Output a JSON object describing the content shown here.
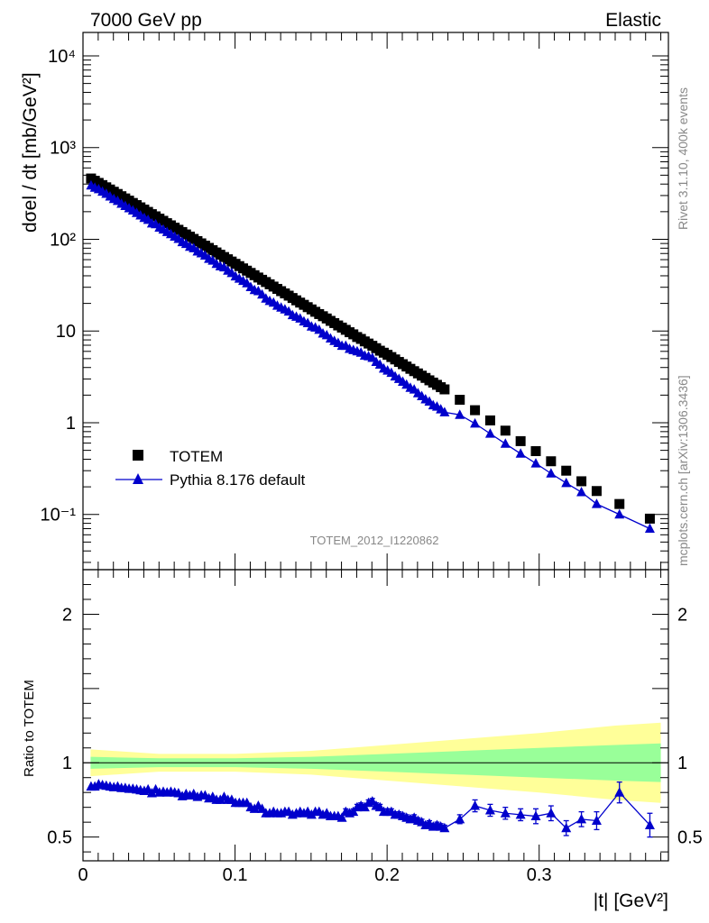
{
  "header": {
    "left": "7000 GeV pp",
    "right": "Elastic"
  },
  "side_labels": {
    "rivet": "Rivet 3.1.10,  400k events",
    "mcplots": "mcplots.cern.ch [arXiv:1306.3436]"
  },
  "colors": {
    "data": "#000000",
    "mc": "#0000cc",
    "band_inner": "#99ff99",
    "band_outer": "#ffff99"
  },
  "chart_data": [
    {
      "type": "scatter",
      "title": "TOTEM_2012_I1220862",
      "xlabel": "|t| [GeV²]",
      "ylabel": "dσel / dt [mb/GeV²]",
      "yscale": "log",
      "xlim": [
        0,
        0.385
      ],
      "ylim": [
        0.025,
        18000
      ],
      "ytick_labels": [
        "10⁻¹",
        "1",
        "10",
        "10²",
        "10³",
        "10⁴"
      ],
      "legend": [
        {
          "name": "TOTEM",
          "marker": "square"
        },
        {
          "name": "Pythia 8.176 default",
          "marker": "triangle"
        }
      ],
      "legend_position": "bottom-left",
      "series": [
        {
          "name": "TOTEM",
          "x": [
            0.0053,
            0.0078,
            0.0103,
            0.0128,
            0.0153,
            0.0178,
            0.0203,
            0.0228,
            0.0253,
            0.0278,
            0.0303,
            0.0328,
            0.0353,
            0.0378,
            0.0403,
            0.0428,
            0.0453,
            0.0478,
            0.0503,
            0.0528,
            0.0553,
            0.0578,
            0.0603,
            0.0628,
            0.0653,
            0.0678,
            0.0703,
            0.0728,
            0.0753,
            0.0778,
            0.0803,
            0.0828,
            0.0853,
            0.0878,
            0.0903,
            0.0928,
            0.0953,
            0.0978,
            0.1003,
            0.1028,
            0.1053,
            0.1078,
            0.1103,
            0.1128,
            0.1153,
            0.1178,
            0.1203,
            0.1228,
            0.1253,
            0.1278,
            0.1303,
            0.1328,
            0.1353,
            0.1378,
            0.1403,
            0.1428,
            0.1453,
            0.1478,
            0.1503,
            0.1528,
            0.1553,
            0.1578,
            0.1603,
            0.1628,
            0.1653,
            0.1678,
            0.1703,
            0.1728,
            0.1753,
            0.1778,
            0.1803,
            0.1828,
            0.1853,
            0.1878,
            0.1903,
            0.1928,
            0.1953,
            0.1978,
            0.2003,
            0.2028,
            0.2053,
            0.2078,
            0.2103,
            0.2128,
            0.2153,
            0.2178,
            0.2203,
            0.2228,
            0.2253,
            0.2278,
            0.2303,
            0.2328,
            0.2353,
            0.2378,
            0.2478,
            0.2578,
            0.2678,
            0.2778,
            0.2878,
            0.2978,
            0.3078,
            0.3178,
            0.3278,
            0.3378,
            0.3528,
            0.3728
          ],
          "values": [
            460,
            435,
            412,
            390,
            369,
            349,
            330,
            312,
            295,
            279,
            264,
            249,
            236,
            223,
            211,
            199,
            188,
            178,
            168,
            159,
            150,
            142,
            134,
            127,
            120,
            113,
            107,
            101,
            95.6,
            90.3,
            85.3,
            80.6,
            76.1,
            71.9,
            67.9,
            64.1,
            60.6,
            57.2,
            54.0,
            51.0,
            48.2,
            45.5,
            43.0,
            40.6,
            38.3,
            36.2,
            34.2,
            32.3,
            30.5,
            28.8,
            27.2,
            25.7,
            24.3,
            22.9,
            21.6,
            20.4,
            19.3,
            18.2,
            17.2,
            16.2,
            15.3,
            14.5,
            13.7,
            12.9,
            12.2,
            11.5,
            10.9,
            10.3,
            9.7,
            9.2,
            8.6,
            8.2,
            7.7,
            7.3,
            6.9,
            6.5,
            6.1,
            5.8,
            5.5,
            5.2,
            4.9,
            4.6,
            4.35,
            4.1,
            3.87,
            3.65,
            3.45,
            3.26,
            3.08,
            2.9,
            2.74,
            2.59,
            2.44,
            2.31,
            1.78,
            1.37,
            1.06,
            0.82,
            0.63,
            0.49,
            0.38,
            0.3,
            0.23,
            0.18,
            0.13,
            0.09
          ]
        },
        {
          "name": "Pythia 8.176 default",
          "x": [
            0.0053,
            0.0078,
            0.0103,
            0.0128,
            0.0153,
            0.0178,
            0.0203,
            0.0228,
            0.0253,
            0.0278,
            0.0303,
            0.0328,
            0.0353,
            0.0378,
            0.0403,
            0.0428,
            0.0453,
            0.0478,
            0.0503,
            0.0528,
            0.0553,
            0.0578,
            0.0603,
            0.0628,
            0.0653,
            0.0678,
            0.0703,
            0.0728,
            0.0753,
            0.0778,
            0.0803,
            0.0828,
            0.0853,
            0.0878,
            0.0903,
            0.0928,
            0.0953,
            0.0978,
            0.1003,
            0.1028,
            0.1053,
            0.1078,
            0.1103,
            0.1128,
            0.1153,
            0.1178,
            0.1203,
            0.1228,
            0.1253,
            0.1278,
            0.1303,
            0.1328,
            0.1353,
            0.1378,
            0.1403,
            0.1428,
            0.1453,
            0.1478,
            0.1503,
            0.1528,
            0.1553,
            0.1578,
            0.1603,
            0.1628,
            0.1653,
            0.1678,
            0.1703,
            0.1728,
            0.1753,
            0.1778,
            0.1803,
            0.1828,
            0.1853,
            0.1878,
            0.1903,
            0.1928,
            0.1953,
            0.1978,
            0.2003,
            0.2028,
            0.2053,
            0.2078,
            0.2103,
            0.2128,
            0.2153,
            0.2178,
            0.2203,
            0.2228,
            0.2253,
            0.2278,
            0.2303,
            0.2328,
            0.2353,
            0.2378,
            0.2478,
            0.2578,
            0.2678,
            0.2778,
            0.2878,
            0.2978,
            0.3078,
            0.3178,
            0.3278,
            0.3378,
            0.3528,
            0.3728
          ],
          "values": [
            386,
            365,
            352,
            331,
            313,
            293,
            275,
            262,
            244,
            231,
            218,
            206,
            194,
            182,
            171,
            163,
            149,
            146,
            134,
            128,
            120,
            114,
            107,
            101,
            93,
            89,
            83,
            80,
            73.6,
            70.4,
            66.5,
            61.3,
            58.6,
            54.0,
            50.9,
            49.4,
            45.5,
            42.9,
            39.4,
            37.2,
            35.2,
            33.2,
            30.1,
            28.0,
            27.2,
            25.0,
            22.6,
            21.3,
            20.4,
            18.9,
            18.0,
            17.2,
            16.3,
            14.9,
            14.3,
            13.7,
            12.7,
            12.2,
            11.2,
            10.9,
            10.3,
            9.4,
            9.0,
            8.3,
            7.8,
            7.4,
            6.9,
            6.9,
            6.4,
            6.2,
            6.0,
            5.8,
            5.4,
            5.3,
            5.1,
            4.6,
            4.3,
            3.9,
            3.7,
            3.5,
            3.2,
            3.0,
            2.8,
            2.6,
            2.4,
            2.3,
            2.1,
            1.95,
            1.8,
            1.7,
            1.55,
            1.5,
            1.4,
            1.3,
            1.22,
            0.98,
            0.76,
            0.59,
            0.46,
            0.36,
            0.28,
            0.22,
            0.175,
            0.13,
            0.1,
            0.07
          ]
        }
      ]
    },
    {
      "type": "line",
      "ylabel": "Ratio to TOTEM",
      "xlabel": "|t| [GeV²]",
      "xlim": [
        0,
        0.385
      ],
      "ylim": [
        0.34,
        2.3
      ],
      "ytick_labels": [
        "0.5",
        "1",
        "2"
      ],
      "xtick_labels": [
        "0",
        "0.1",
        "0.2",
        "0.3"
      ],
      "bands": {
        "x": [
          0.005,
          0.05,
          0.1,
          0.15,
          0.2,
          0.25,
          0.3,
          0.35,
          0.38
        ],
        "inner_half_width": [
          0.04,
          0.03,
          0.03,
          0.04,
          0.06,
          0.08,
          0.1,
          0.12,
          0.13
        ],
        "outer_half_width": [
          0.09,
          0.06,
          0.06,
          0.08,
          0.12,
          0.16,
          0.2,
          0.25,
          0.27
        ]
      },
      "series": [
        {
          "name": "Pythia 8.176 default",
          "x": [
            0.0053,
            0.0078,
            0.0103,
            0.0128,
            0.0153,
            0.0178,
            0.0203,
            0.0228,
            0.0253,
            0.0278,
            0.0303,
            0.0328,
            0.0353,
            0.0378,
            0.0403,
            0.0428,
            0.0453,
            0.0478,
            0.0503,
            0.0528,
            0.0553,
            0.0578,
            0.0603,
            0.0628,
            0.0653,
            0.0678,
            0.0703,
            0.0728,
            0.0753,
            0.0778,
            0.0803,
            0.0828,
            0.0853,
            0.0878,
            0.0903,
            0.0928,
            0.0953,
            0.0978,
            0.1003,
            0.1028,
            0.1053,
            0.1078,
            0.1103,
            0.1128,
            0.1153,
            0.1178,
            0.1203,
            0.1228,
            0.1253,
            0.1278,
            0.1303,
            0.1328,
            0.1353,
            0.1378,
            0.1403,
            0.1428,
            0.1453,
            0.1478,
            0.1503,
            0.1528,
            0.1553,
            0.1578,
            0.1603,
            0.1628,
            0.1653,
            0.1678,
            0.1703,
            0.1728,
            0.1753,
            0.1778,
            0.1803,
            0.1828,
            0.1853,
            0.1878,
            0.1903,
            0.1928,
            0.1953,
            0.1978,
            0.2003,
            0.2028,
            0.2053,
            0.2078,
            0.2103,
            0.2128,
            0.2153,
            0.2178,
            0.2203,
            0.2228,
            0.2253,
            0.2278,
            0.2303,
            0.2328,
            0.2353,
            0.2378,
            0.2478,
            0.2578,
            0.2678,
            0.2778,
            0.2878,
            0.2978,
            0.3078,
            0.3178,
            0.3278,
            0.3378,
            0.3528,
            0.3728
          ],
          "values": [
            0.84,
            0.84,
            0.855,
            0.85,
            0.845,
            0.84,
            0.835,
            0.84,
            0.83,
            0.83,
            0.825,
            0.825,
            0.82,
            0.815,
            0.81,
            0.82,
            0.795,
            0.82,
            0.8,
            0.805,
            0.8,
            0.805,
            0.8,
            0.795,
            0.775,
            0.79,
            0.78,
            0.79,
            0.77,
            0.78,
            0.78,
            0.76,
            0.77,
            0.75,
            0.75,
            0.77,
            0.75,
            0.75,
            0.73,
            0.73,
            0.73,
            0.73,
            0.7,
            0.69,
            0.71,
            0.69,
            0.66,
            0.66,
            0.67,
            0.66,
            0.66,
            0.67,
            0.67,
            0.65,
            0.66,
            0.67,
            0.66,
            0.67,
            0.65,
            0.67,
            0.67,
            0.65,
            0.66,
            0.64,
            0.64,
            0.64,
            0.63,
            0.67,
            0.66,
            0.67,
            0.7,
            0.71,
            0.7,
            0.73,
            0.74,
            0.71,
            0.7,
            0.67,
            0.67,
            0.67,
            0.65,
            0.65,
            0.64,
            0.63,
            0.62,
            0.63,
            0.61,
            0.6,
            0.58,
            0.59,
            0.57,
            0.58,
            0.57,
            0.56,
            0.62,
            0.71,
            0.68,
            0.66,
            0.65,
            0.64,
            0.66,
            0.56,
            0.62,
            0.61,
            0.8,
            0.58
          ],
          "errors": [
            0.01,
            0.01,
            0.01,
            0.01,
            0.01,
            0.01,
            0.01,
            0.01,
            0.01,
            0.01,
            0.01,
            0.01,
            0.01,
            0.01,
            0.01,
            0.01,
            0.01,
            0.01,
            0.01,
            0.01,
            0.01,
            0.01,
            0.01,
            0.01,
            0.01,
            0.01,
            0.01,
            0.01,
            0.01,
            0.01,
            0.01,
            0.01,
            0.01,
            0.01,
            0.01,
            0.01,
            0.01,
            0.01,
            0.01,
            0.01,
            0.01,
            0.01,
            0.01,
            0.01,
            0.01,
            0.01,
            0.01,
            0.01,
            0.01,
            0.01,
            0.01,
            0.01,
            0.01,
            0.01,
            0.01,
            0.01,
            0.01,
            0.01,
            0.01,
            0.01,
            0.01,
            0.01,
            0.01,
            0.01,
            0.01,
            0.01,
            0.01,
            0.02,
            0.02,
            0.02,
            0.02,
            0.02,
            0.02,
            0.02,
            0.02,
            0.02,
            0.02,
            0.02,
            0.02,
            0.02,
            0.02,
            0.02,
            0.02,
            0.02,
            0.02,
            0.02,
            0.02,
            0.02,
            0.02,
            0.02,
            0.02,
            0.02,
            0.02,
            0.02,
            0.03,
            0.04,
            0.04,
            0.04,
            0.04,
            0.05,
            0.05,
            0.05,
            0.05,
            0.06,
            0.07,
            0.08
          ]
        }
      ]
    }
  ]
}
